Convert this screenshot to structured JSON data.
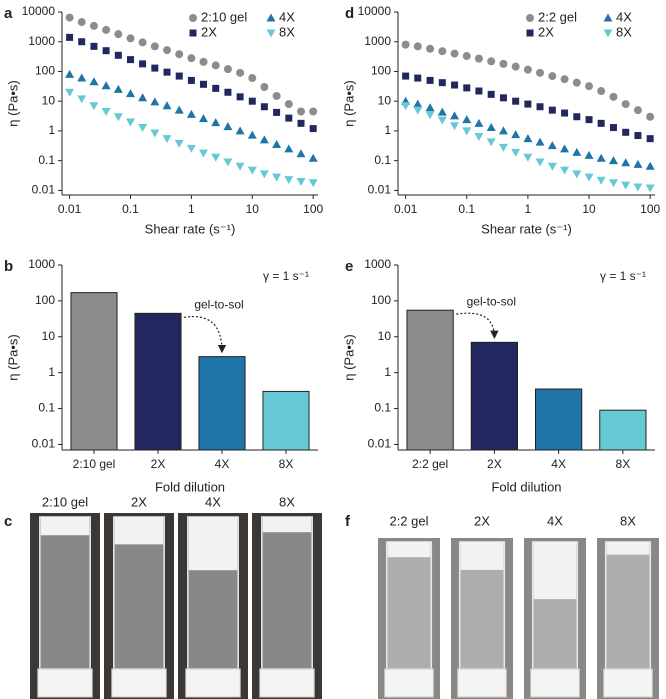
{
  "chart_data": [
    {
      "type": "scatter",
      "panel": "a",
      "xlabel": "Shear rate (s⁻¹)",
      "ylabel": "η (Pa•s)",
      "xscale": "log",
      "yscale": "log",
      "legend": "upper right",
      "x": [
        0.01,
        0.0158,
        0.0251,
        0.0398,
        0.0631,
        0.1,
        0.158,
        0.251,
        0.398,
        0.631,
        1,
        1.58,
        2.51,
        3.98,
        6.31,
        10,
        15.8,
        25.1,
        39.8,
        63.1,
        100
      ],
      "series": [
        {
          "name": "2:10 gel",
          "color": "#8c8c8e",
          "marker": "circle",
          "values": [
            6500,
            4600,
            3400,
            2500,
            1800,
            1300,
            950,
            700,
            520,
            380,
            280,
            210,
            160,
            120,
            90,
            60,
            30,
            15,
            8,
            4.5,
            4.5
          ]
        },
        {
          "name": "2X",
          "color": "#23275f",
          "marker": "square",
          "values": [
            1400,
            1000,
            700,
            500,
            350,
            250,
            180,
            130,
            95,
            70,
            50,
            37,
            27,
            20,
            14,
            10,
            6.5,
            4.2,
            2.7,
            1.8,
            1.2
          ]
        },
        {
          "name": "4X",
          "color": "#1f74a8",
          "marker": "triangle-up",
          "values": [
            80,
            60,
            45,
            33,
            25,
            18,
            13,
            9.5,
            7,
            5,
            3.6,
            2.6,
            1.9,
            1.4,
            1,
            0.72,
            0.5,
            0.35,
            0.25,
            0.17,
            0.12
          ]
        },
        {
          "name": "8X",
          "color": "#68c9d6",
          "marker": "triangle-down",
          "values": [
            20,
            12,
            7,
            4.5,
            3,
            2,
            1.3,
            0.85,
            0.55,
            0.38,
            0.26,
            0.18,
            0.13,
            0.09,
            0.065,
            0.048,
            0.036,
            0.028,
            0.023,
            0.02,
            0.018
          ]
        }
      ],
      "xlim": [
        0.0075,
        120
      ],
      "ylim": [
        0.007,
        10000
      ],
      "xticks": [
        0.01,
        0.1,
        1,
        10,
        100
      ],
      "yticks": [
        0.01,
        0.1,
        1,
        10,
        100,
        1000,
        10000
      ]
    },
    {
      "type": "bar",
      "panel": "b",
      "xlabel": "Fold dilution",
      "ylabel": "η (Pa•s)",
      "yscale": "log",
      "categories": [
        "2:10 gel",
        "2X",
        "4X",
        "8X"
      ],
      "values": [
        170,
        45,
        2.8,
        0.3
      ],
      "colors": [
        "#8c8c8e",
        "#23275f",
        "#1f74a8",
        "#68c9d6"
      ],
      "ylim": [
        0.007,
        1000
      ],
      "yticks": [
        0.01,
        0.1,
        1,
        10,
        100,
        1000
      ],
      "annotations": [
        "γ = 1 s⁻¹",
        "gel-to-sol"
      ]
    },
    {
      "type": "scatter",
      "panel": "d",
      "xlabel": "Shear rate (s⁻¹)",
      "ylabel": "η (Pa•s)",
      "xscale": "log",
      "yscale": "log",
      "legend": "upper right",
      "x": [
        0.01,
        0.0158,
        0.0251,
        0.0398,
        0.0631,
        0.1,
        0.158,
        0.251,
        0.398,
        0.631,
        1,
        1.58,
        2.51,
        3.98,
        6.31,
        10,
        15.8,
        25.1,
        39.8,
        63.1,
        100
      ],
      "series": [
        {
          "name": "2:2 gel",
          "color": "#8c8c8e",
          "marker": "circle",
          "values": [
            800,
            700,
            580,
            480,
            400,
            330,
            270,
            220,
            180,
            145,
            115,
            90,
            70,
            55,
            42,
            32,
            22,
            14,
            8,
            5,
            3
          ]
        },
        {
          "name": "2X",
          "color": "#23275f",
          "marker": "square",
          "values": [
            70,
            60,
            50,
            42,
            35,
            28,
            22,
            17,
            13,
            10,
            8,
            6.5,
            5,
            4,
            3,
            2.4,
            1.8,
            1.3,
            0.9,
            0.7,
            0.55
          ]
        },
        {
          "name": "4X",
          "color": "#1f74a8",
          "marker": "triangle-up",
          "values": [
            10,
            8,
            6,
            4.3,
            3.2,
            2.4,
            1.8,
            1.3,
            1,
            0.75,
            0.55,
            0.42,
            0.32,
            0.25,
            0.19,
            0.15,
            0.12,
            0.1,
            0.085,
            0.075,
            0.065
          ]
        },
        {
          "name": "8X",
          "color": "#68c9d6",
          "marker": "triangle-down",
          "values": [
            7,
            5,
            3.5,
            2.3,
            1.5,
            1,
            0.65,
            0.43,
            0.28,
            0.19,
            0.13,
            0.09,
            0.065,
            0.048,
            0.036,
            0.028,
            0.022,
            0.018,
            0.015,
            0.013,
            0.012
          ]
        }
      ],
      "xlim": [
        0.0075,
        120
      ],
      "ylim": [
        0.007,
        10000
      ],
      "xticks": [
        0.01,
        0.1,
        1,
        10,
        100
      ],
      "yticks": [
        0.01,
        0.1,
        1,
        10,
        100,
        1000,
        10000
      ]
    },
    {
      "type": "bar",
      "panel": "e",
      "xlabel": "Fold dilution",
      "ylabel": "η (Pa•s)",
      "yscale": "log",
      "categories": [
        "2:2 gel",
        "2X",
        "4X",
        "8X"
      ],
      "values": [
        55,
        7,
        0.35,
        0.09
      ],
      "colors": [
        "#8c8c8e",
        "#23275f",
        "#1f74a8",
        "#68c9d6"
      ],
      "ylim": [
        0.007,
        1000
      ],
      "yticks": [
        0.01,
        0.1,
        1,
        10,
        100,
        1000
      ],
      "annotations": [
        "γ = 1 s⁻¹",
        "gel-to-sol"
      ]
    }
  ],
  "photo_panels": [
    {
      "panel": "c",
      "labels": [
        "2:10 gel",
        "2X",
        "4X",
        "8X"
      ]
    },
    {
      "panel": "f",
      "labels": [
        "2:2 gel",
        "2X",
        "4X",
        "8X"
      ]
    }
  ]
}
